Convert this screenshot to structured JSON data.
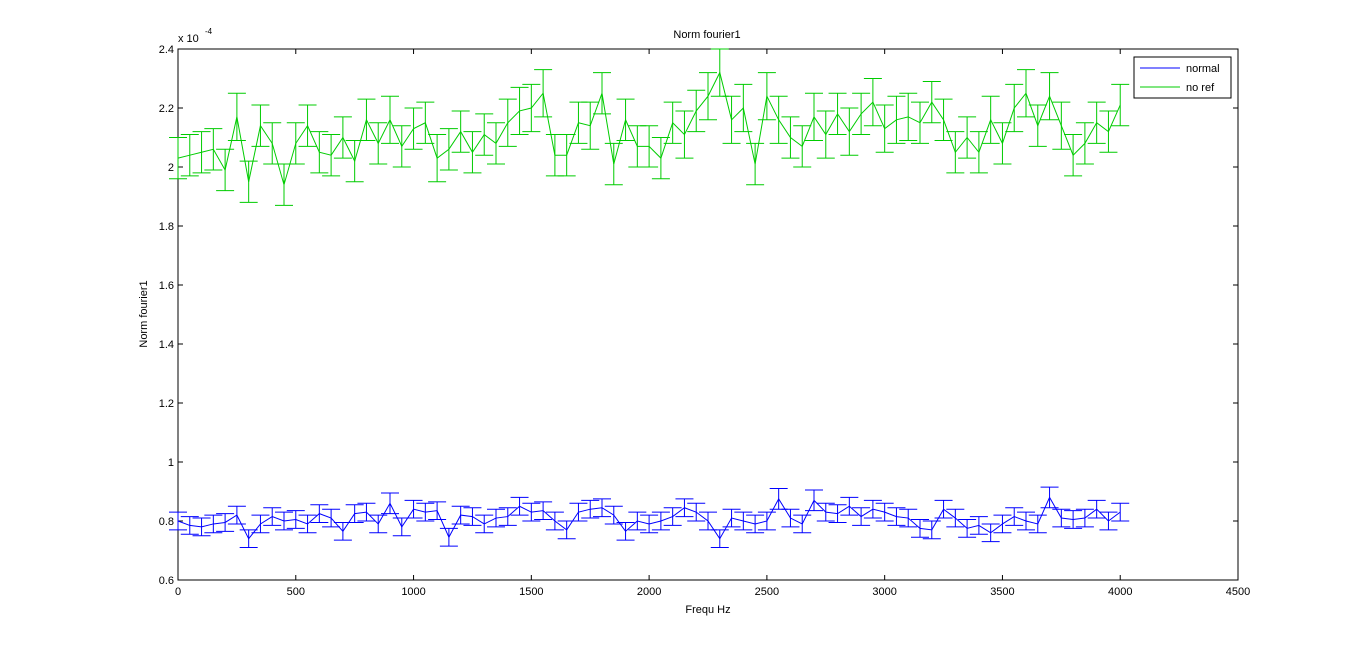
{
  "chart_data": {
    "type": "line",
    "title": "Norm fourier1",
    "xlabel": "Frequ Hz",
    "ylabel": "Norm fourier1",
    "y_exponent": {
      "base": "x 10",
      "power": "-4"
    },
    "xlim": [
      0,
      4500
    ],
    "ylim": [
      0.6,
      2.4
    ],
    "x_ticks": [
      0,
      500,
      1000,
      1500,
      2000,
      2500,
      3000,
      3500,
      4000,
      4500
    ],
    "y_ticks": [
      0.6,
      0.8,
      1,
      1.2,
      1.4,
      1.6,
      1.8,
      2,
      2.2,
      2.4
    ],
    "x_tick_labels": [
      "0",
      "500",
      "1000",
      "1500",
      "2000",
      "2500",
      "3000",
      "3500",
      "4000",
      "4500"
    ],
    "y_tick_labels": [
      "0.6",
      "0.8",
      "1",
      "1.2",
      "1.4",
      "1.6",
      "1.8",
      "2",
      "2.2",
      "2.4"
    ],
    "grid": false,
    "legend_position": "top-right",
    "x": [
      0,
      50,
      100,
      150,
      200,
      250,
      300,
      350,
      400,
      450,
      500,
      550,
      600,
      650,
      700,
      750,
      800,
      850,
      900,
      950,
      1000,
      1050,
      1100,
      1150,
      1200,
      1250,
      1300,
      1350,
      1400,
      1450,
      1500,
      1550,
      1600,
      1650,
      1700,
      1750,
      1800,
      1850,
      1900,
      1950,
      2000,
      2050,
      2100,
      2150,
      2200,
      2250,
      2300,
      2350,
      2400,
      2450,
      2500,
      2550,
      2600,
      2650,
      2700,
      2750,
      2800,
      2850,
      2900,
      2950,
      3000,
      3050,
      3100,
      3150,
      3200,
      3250,
      3300,
      3350,
      3400,
      3450,
      3500,
      3550,
      3600,
      3650,
      3700,
      3750,
      3800,
      3850,
      3900,
      3950,
      4000
    ],
    "series": [
      {
        "name": "normal",
        "color": "#0000ff",
        "values": [
          0.8,
          0.785,
          0.78,
          0.79,
          0.795,
          0.82,
          0.74,
          0.79,
          0.815,
          0.8,
          0.805,
          0.79,
          0.825,
          0.81,
          0.765,
          0.825,
          0.83,
          0.79,
          0.86,
          0.78,
          0.84,
          0.83,
          0.835,
          0.745,
          0.82,
          0.815,
          0.79,
          0.81,
          0.815,
          0.85,
          0.83,
          0.835,
          0.8,
          0.77,
          0.83,
          0.84,
          0.845,
          0.82,
          0.765,
          0.8,
          0.79,
          0.8,
          0.815,
          0.845,
          0.83,
          0.8,
          0.74,
          0.81,
          0.8,
          0.79,
          0.8,
          0.875,
          0.81,
          0.79,
          0.87,
          0.83,
          0.825,
          0.85,
          0.815,
          0.84,
          0.83,
          0.815,
          0.81,
          0.775,
          0.77,
          0.84,
          0.81,
          0.775,
          0.785,
          0.76,
          0.79,
          0.815,
          0.8,
          0.79,
          0.88,
          0.81,
          0.805,
          0.81,
          0.84,
          0.8,
          0.83
        ],
        "error": [
          0.03,
          0.03,
          0.03,
          0.03,
          0.03,
          0.03,
          0.03,
          0.03,
          0.03,
          0.03,
          0.03,
          0.03,
          0.03,
          0.03,
          0.03,
          0.03,
          0.03,
          0.03,
          0.035,
          0.03,
          0.03,
          0.03,
          0.03,
          0.03,
          0.03,
          0.03,
          0.03,
          0.03,
          0.03,
          0.03,
          0.03,
          0.03,
          0.03,
          0.03,
          0.03,
          0.03,
          0.03,
          0.03,
          0.03,
          0.03,
          0.03,
          0.03,
          0.03,
          0.03,
          0.03,
          0.03,
          0.03,
          0.03,
          0.03,
          0.03,
          0.03,
          0.035,
          0.03,
          0.03,
          0.035,
          0.03,
          0.03,
          0.03,
          0.03,
          0.03,
          0.03,
          0.03,
          0.03,
          0.03,
          0.03,
          0.03,
          0.03,
          0.03,
          0.03,
          0.03,
          0.03,
          0.03,
          0.03,
          0.03,
          0.035,
          0.03,
          0.03,
          0.03,
          0.03,
          0.03,
          0.03
        ]
      },
      {
        "name": "no ref",
        "color": "#00cc00",
        "values": [
          2.03,
          2.04,
          2.05,
          2.06,
          1.99,
          2.17,
          1.95,
          2.14,
          2.08,
          1.94,
          2.08,
          2.14,
          2.05,
          2.04,
          2.1,
          2.02,
          2.16,
          2.08,
          2.16,
          2.07,
          2.13,
          2.15,
          2.03,
          2.06,
          2.12,
          2.05,
          2.11,
          2.08,
          2.15,
          2.19,
          2.2,
          2.25,
          2.04,
          2.04,
          2.15,
          2.14,
          2.25,
          2.01,
          2.16,
          2.07,
          2.07,
          2.03,
          2.15,
          2.11,
          2.19,
          2.24,
          2.32,
          2.16,
          2.2,
          2.01,
          2.24,
          2.16,
          2.1,
          2.07,
          2.17,
          2.11,
          2.18,
          2.12,
          2.18,
          2.22,
          2.13,
          2.16,
          2.17,
          2.15,
          2.22,
          2.16,
          2.05,
          2.1,
          2.05,
          2.16,
          2.08,
          2.2,
          2.25,
          2.14,
          2.24,
          2.14,
          2.04,
          2.08,
          2.15,
          2.12,
          2.21
        ],
        "error": [
          0.07,
          0.07,
          0.07,
          0.07,
          0.07,
          0.08,
          0.07,
          0.07,
          0.07,
          0.07,
          0.07,
          0.07,
          0.07,
          0.07,
          0.07,
          0.07,
          0.07,
          0.07,
          0.08,
          0.07,
          0.07,
          0.07,
          0.08,
          0.07,
          0.07,
          0.07,
          0.07,
          0.07,
          0.08,
          0.08,
          0.08,
          0.08,
          0.07,
          0.07,
          0.07,
          0.08,
          0.07,
          0.07,
          0.07,
          0.07,
          0.07,
          0.07,
          0.07,
          0.08,
          0.07,
          0.08,
          0.08,
          0.08,
          0.08,
          0.07,
          0.08,
          0.08,
          0.07,
          0.07,
          0.08,
          0.08,
          0.07,
          0.08,
          0.07,
          0.08,
          0.08,
          0.08,
          0.08,
          0.07,
          0.07,
          0.07,
          0.07,
          0.07,
          0.07,
          0.08,
          0.07,
          0.08,
          0.08,
          0.07,
          0.08,
          0.08,
          0.07,
          0.07,
          0.07,
          0.07,
          0.07
        ]
      }
    ]
  }
}
